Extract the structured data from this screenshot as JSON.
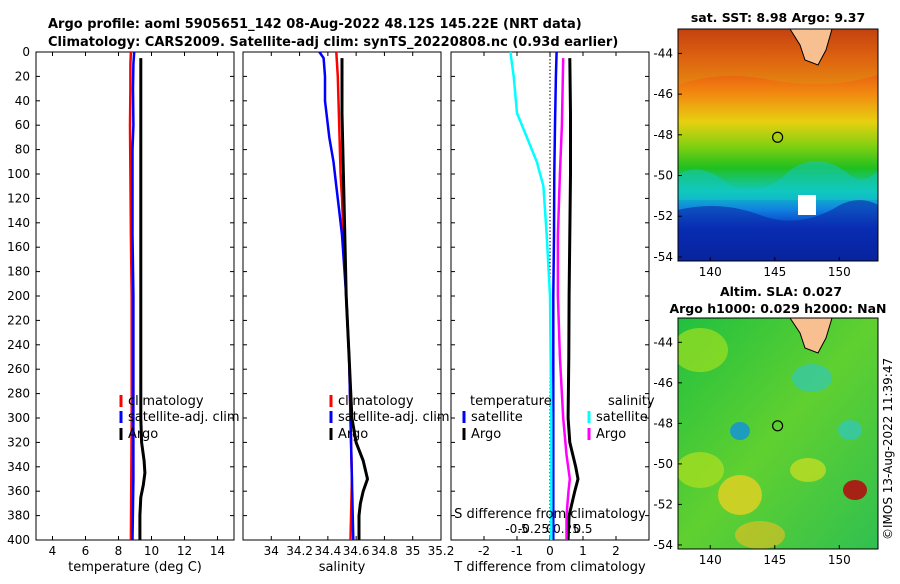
{
  "header": {
    "title_line1": "Argo profile: aoml 5905651_142 08-Aug-2022 48.12S 145.22E (NRT data)",
    "title_line2": "Climatology: CARS2009. Satellite-adj clim: synTS_20220808.nc (0.93d earlier)"
  },
  "depth_axis": {
    "ylim": [
      0,
      400
    ],
    "ticks": [
      0,
      20,
      40,
      60,
      80,
      100,
      120,
      140,
      160,
      180,
      200,
      220,
      240,
      260,
      280,
      300,
      320,
      340,
      360,
      380,
      400
    ]
  },
  "colors": {
    "climatology": "#ff0000",
    "satellite": "#0000ff",
    "argo": "#000000",
    "sal_satellite": "#00ffff",
    "sal_argo": "#ff00ff"
  },
  "chart_data": [
    {
      "type": "line",
      "id": "temperature",
      "xlabel": "temperature (deg C)",
      "xlim": [
        3,
        15
      ],
      "xticks": [
        4,
        6,
        8,
        10,
        12,
        14
      ],
      "xtick_labels": [
        "4",
        "6",
        "8",
        "10",
        "12",
        "14"
      ],
      "legend": [
        "climatology",
        "satellite-adj. clim",
        "Argo"
      ],
      "series": [
        {
          "name": "climatology",
          "color": "#ff0000",
          "depth": [
            0,
            10,
            30,
            60,
            100,
            150,
            200,
            300,
            400
          ],
          "values": [
            8.75,
            8.72,
            8.72,
            8.7,
            8.72,
            8.75,
            8.8,
            8.8,
            8.75
          ]
        },
        {
          "name": "satellite-adj. clim",
          "color": "#0000ff",
          "depth": [
            0,
            10,
            30,
            60,
            80,
            100,
            150,
            200,
            300,
            350,
            400
          ],
          "values": [
            8.95,
            8.9,
            8.88,
            8.9,
            8.85,
            8.85,
            8.85,
            8.9,
            8.9,
            8.9,
            8.85
          ]
        },
        {
          "name": "Argo",
          "color": "#000000",
          "depth": [
            5,
            50,
            100,
            150,
            200,
            250,
            300,
            320,
            335,
            345,
            355,
            365,
            380,
            400
          ],
          "values": [
            9.35,
            9.35,
            9.35,
            9.35,
            9.35,
            9.35,
            9.35,
            9.4,
            9.55,
            9.6,
            9.5,
            9.35,
            9.3,
            9.3
          ]
        }
      ]
    },
    {
      "type": "line",
      "id": "salinity",
      "xlabel": "salinity",
      "xlim": [
        33.8,
        35.2
      ],
      "xticks": [
        34,
        34.2,
        34.4,
        34.6,
        34.8,
        35,
        35.2
      ],
      "xtick_labels": [
        "34",
        "34.2",
        "34.4",
        "34.6",
        "34.8",
        "35",
        "35.2"
      ],
      "legend": [
        "climatology",
        "satellite-adj. clim",
        "Argo"
      ],
      "series": [
        {
          "name": "climatology",
          "color": "#ff0000",
          "depth": [
            0,
            20,
            60,
            100,
            120,
            150,
            200,
            250,
            300,
            350,
            400
          ],
          "values": [
            34.46,
            34.47,
            34.48,
            34.49,
            34.5,
            34.51,
            34.53,
            34.55,
            34.56,
            34.57,
            34.56
          ]
        },
        {
          "name": "satellite-adj. clim",
          "color": "#0000ff",
          "depth": [
            0,
            5,
            20,
            40,
            70,
            90,
            110,
            130,
            150,
            200,
            250,
            300,
            350,
            400
          ],
          "values": [
            34.34,
            34.37,
            34.38,
            34.38,
            34.41,
            34.44,
            34.46,
            34.48,
            34.5,
            34.53,
            34.55,
            34.56,
            34.57,
            34.58
          ]
        },
        {
          "name": "Argo",
          "color": "#000000",
          "depth": [
            5,
            50,
            100,
            150,
            200,
            250,
            300,
            320,
            335,
            350,
            360,
            370,
            380,
            400
          ],
          "values": [
            34.5,
            34.5,
            34.51,
            34.52,
            34.53,
            34.55,
            34.57,
            34.6,
            34.65,
            34.68,
            34.65,
            34.63,
            34.62,
            34.62
          ]
        }
      ]
    },
    {
      "type": "line",
      "id": "difference",
      "xlabel": "T difference from climatology",
      "xlim": [
        -3,
        3
      ],
      "xticks": [
        -2,
        -1,
        0,
        1,
        2
      ],
      "xtick_labels": [
        "-2",
        "-1",
        "0",
        "1",
        "2"
      ],
      "secondary_axis_title": "S difference from climatology",
      "secondary_ticks": [
        -0.5,
        -0.25,
        0,
        0.25,
        0.5
      ],
      "secondary_tick_labels": [
        "-0.5",
        "-0.25",
        "0",
        "0.25",
        "0.5"
      ],
      "legend_titles": [
        "temperature",
        "salinity"
      ],
      "legend_temperature": [
        "satellite",
        "Argo"
      ],
      "legend_salinity": [
        "satellite",
        "Argo"
      ],
      "series": [
        {
          "name": "temperature satellite",
          "color": "#0000ff",
          "depth": [
            0,
            20,
            60,
            100,
            150,
            200,
            300,
            400
          ],
          "values": [
            0.2,
            0.18,
            0.15,
            0.13,
            0.12,
            0.1,
            0.1,
            0.1
          ]
        },
        {
          "name": "temperature Argo",
          "color": "#000000",
          "depth": [
            5,
            50,
            100,
            150,
            200,
            250,
            300,
            320,
            340,
            350,
            360,
            380,
            400
          ],
          "values": [
            0.6,
            0.62,
            0.62,
            0.6,
            0.58,
            0.57,
            0.55,
            0.6,
            0.78,
            0.85,
            0.75,
            0.58,
            0.55
          ]
        },
        {
          "name": "salinity satellite",
          "color": "#00ffff",
          "depth": [
            0,
            20,
            50,
            70,
            90,
            110,
            150,
            200,
            300,
            400
          ],
          "values": [
            -0.6,
            -0.55,
            -0.5,
            -0.35,
            -0.2,
            -0.1,
            -0.05,
            0,
            0.02,
            0.02
          ]
        },
        {
          "name": "salinity Argo",
          "color": "#ff00ff",
          "depth": [
            5,
            60,
            100,
            150,
            200,
            250,
            300,
            330,
            350,
            360,
            380,
            400
          ],
          "values": [
            0.2,
            0.18,
            0.15,
            0.12,
            0.12,
            0.15,
            0.2,
            0.25,
            0.3,
            0.28,
            0.25,
            0.25
          ]
        }
      ]
    },
    {
      "type": "heatmap",
      "id": "sst_map",
      "title": "sat. SST: 8.98 Argo: 9.37",
      "xticks": [
        140,
        145,
        150
      ],
      "yticks": [
        -44,
        -46,
        -48,
        -50,
        -52,
        -54
      ],
      "xtick_labels": [
        "140",
        "145",
        "150"
      ],
      "ytick_labels": [
        "-44",
        "-46",
        "-48",
        "-50",
        "-52",
        "-54"
      ],
      "xlim": [
        137.5,
        153
      ],
      "ylim": [
        -54.2,
        -42.8
      ],
      "argo_position": [
        145.22,
        -48.12
      ]
    },
    {
      "type": "heatmap",
      "id": "sla_map",
      "title_line1": "Altim. SLA: 0.027",
      "title_line2": "Argo h1000: 0.029 h2000: NaN",
      "xticks": [
        140,
        145,
        150
      ],
      "yticks": [
        -44,
        -46,
        -48,
        -50,
        -52,
        -54
      ],
      "xtick_labels": [
        "140",
        "145",
        "150"
      ],
      "ytick_labels": [
        "-44",
        "-46",
        "-48",
        "-50",
        "-52",
        "-54"
      ],
      "xlim": [
        137.5,
        153
      ],
      "ylim": [
        -54.2,
        -42.8
      ],
      "argo_position": [
        145.22,
        -48.12
      ]
    }
  ],
  "watermark": "©IMOS 13-Aug-2022 11:39:47"
}
